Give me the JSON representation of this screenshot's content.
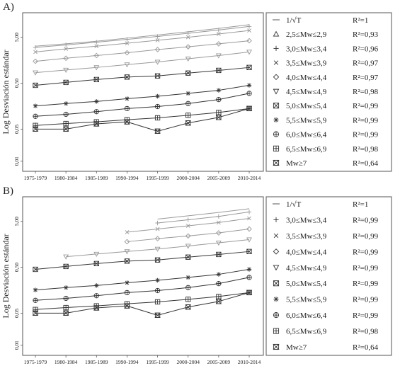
{
  "chart_data": [
    {
      "type": "line",
      "panel_label": "A)",
      "ylabel": "Log Desviación estándar",
      "yscale": "log",
      "ylim": [
        0.008,
        12
      ],
      "yticks": [
        "5,00",
        "0,50",
        "0,05",
        "0,01"
      ],
      "ytick_values": [
        5,
        0.5,
        0.05,
        0.01
      ],
      "categories": [
        "1975-1979",
        "1980-1984",
        "1985-1989",
        "1990-1994",
        "1995-1999",
        "2000-2004",
        "2005-2009",
        "2010-2014"
      ],
      "legend_position": "right",
      "grid": false,
      "series": [
        {
          "name": "1/√T",
          "r2": "R²=1",
          "marker": "line",
          "color": "#999999",
          "values": [
            3.2,
            3.6,
            4.1,
            4.8,
            5.6,
            6.6,
            7.8,
            9.4
          ]
        },
        {
          "name": "2,5≤Mw≤2,9",
          "r2": "R²=0,93",
          "marker": "triangle-up",
          "color": "#999999",
          "values": [
            null,
            null,
            null,
            null,
            null,
            null,
            null,
            null
          ]
        },
        {
          "name": "3,0≤Mw≤3,4",
          "r2": "R²=0,96",
          "marker": "plus",
          "color": "#999999",
          "values": [
            3.0,
            3.4,
            3.9,
            4.5,
            5.2,
            6.1,
            7.2,
            8.6
          ]
        },
        {
          "name": "3,5≤Mw≤3,9",
          "r2": "R²=0,97",
          "marker": "x",
          "color": "#999999",
          "values": [
            2.4,
            2.8,
            3.2,
            3.7,
            4.3,
            5.0,
            5.9,
            7.0
          ]
        },
        {
          "name": "4,0≤Mw≤4,4",
          "r2": "R²=0,97",
          "marker": "diamond",
          "color": "#999999",
          "values": [
            1.5,
            1.75,
            2.0,
            2.3,
            2.7,
            3.1,
            3.6,
            4.2
          ]
        },
        {
          "name": "4,5≤Mw≤4,9",
          "r2": "R²=0,98",
          "marker": "triangle-down",
          "color": "#999999",
          "values": [
            0.85,
            0.97,
            1.1,
            1.27,
            1.45,
            1.7,
            2.0,
            2.4
          ]
        },
        {
          "name": "5,0≤Mw≤5,4",
          "r2": "R²=0,99",
          "marker": "square-x",
          "color": "#333333",
          "values": [
            0.45,
            0.52,
            0.6,
            0.68,
            0.72,
            0.83,
            0.95,
            1.1
          ]
        },
        {
          "name": "5,5≤Mw≤5,9",
          "r2": "R²=0,99",
          "marker": "asterisk",
          "color": "#333333",
          "values": [
            0.16,
            0.18,
            0.2,
            0.23,
            0.26,
            0.3,
            0.35,
            0.45
          ]
        },
        {
          "name": "6,0≤Mw≤6,4",
          "r2": "R²=0,99",
          "marker": "circle-plus",
          "color": "#333333",
          "values": [
            0.095,
            0.105,
            0.12,
            0.14,
            0.155,
            0.18,
            0.22,
            0.3
          ]
        },
        {
          "name": "6,5≤Mw≤6,9",
          "r2": "R²=0,98",
          "marker": "square-plus",
          "color": "#333333",
          "values": [
            0.06,
            0.066,
            0.072,
            0.08,
            0.088,
            0.1,
            0.115,
            0.14
          ]
        },
        {
          "name": "Mw≥7",
          "r2": "R²=0,64",
          "marker": "square-hourglass",
          "color": "#333333",
          "values": [
            0.05,
            0.05,
            0.065,
            0.072,
            0.045,
            0.068,
            0.09,
            0.14
          ]
        }
      ]
    },
    {
      "type": "line",
      "panel_label": "B)",
      "ylabel": "Log Desviación estándar",
      "yscale": "log",
      "ylim": [
        0.008,
        12
      ],
      "yticks": [
        "5,00",
        "0,50",
        "0,05",
        "0,01"
      ],
      "ytick_values": [
        5,
        0.5,
        0.05,
        0.01
      ],
      "categories": [
        "1975-1979",
        "1980-1984",
        "1985-1989",
        "1990-1994",
        "1995-1999",
        "2000-2004",
        "2005-2009",
        "2010-2014"
      ],
      "legend_position": "right",
      "grid": false,
      "series": [
        {
          "name": "1/√T",
          "r2": "R²=1",
          "marker": "line",
          "color": "#999999",
          "values": [
            null,
            null,
            null,
            null,
            5.6,
            6.6,
            7.8,
            9.4
          ]
        },
        {
          "name": "3,0≤Mw≤3,4",
          "r2": "R²=0,99",
          "marker": "plus",
          "color": "#999999",
          "values": [
            null,
            null,
            null,
            null,
            4.6,
            5.4,
            6.4,
            8.0
          ]
        },
        {
          "name": "3,5≤Mw≤3,9",
          "r2": "R²=0,99",
          "marker": "x",
          "color": "#999999",
          "values": [
            null,
            null,
            null,
            2.9,
            3.4,
            4.0,
            4.7,
            5.8
          ]
        },
        {
          "name": "4,0≤Mw≤4,4",
          "r2": "R²=0,99",
          "marker": "diamond",
          "color": "#999999",
          "values": [
            null,
            null,
            null,
            1.8,
            2.1,
            2.4,
            2.8,
            3.4
          ]
        },
        {
          "name": "4,5≤Mw≤4,9",
          "r2": "R²=0,99",
          "marker": "triangle-down",
          "color": "#999999",
          "values": [
            null,
            0.85,
            0.97,
            1.1,
            1.25,
            1.45,
            1.7,
            2.0
          ]
        },
        {
          "name": "5,0≤Mw≤5,4",
          "r2": "R²=0,99",
          "marker": "square-x",
          "color": "#333333",
          "values": [
            0.45,
            0.52,
            0.6,
            0.68,
            0.72,
            0.83,
            0.95,
            1.1
          ]
        },
        {
          "name": "5,5≤Mw≤5,9",
          "r2": "R²=0,99",
          "marker": "asterisk",
          "color": "#333333",
          "values": [
            0.16,
            0.18,
            0.2,
            0.23,
            0.26,
            0.3,
            0.35,
            0.45
          ]
        },
        {
          "name": "6,0≤Mw≤6,4",
          "r2": "R²=0,99",
          "marker": "circle-plus",
          "color": "#333333",
          "values": [
            0.095,
            0.105,
            0.12,
            0.14,
            0.155,
            0.18,
            0.22,
            0.3
          ]
        },
        {
          "name": "6,5≤Mw≤6,9",
          "r2": "R²=0,98",
          "marker": "square-plus",
          "color": "#333333",
          "values": [
            0.06,
            0.066,
            0.072,
            0.08,
            0.088,
            0.1,
            0.115,
            0.14
          ]
        },
        {
          "name": "Mw≥7",
          "r2": "R²=0,64",
          "marker": "square-hourglass",
          "color": "#333333",
          "values": [
            0.05,
            0.05,
            0.065,
            0.072,
            0.045,
            0.068,
            0.09,
            0.14
          ]
        }
      ]
    }
  ]
}
